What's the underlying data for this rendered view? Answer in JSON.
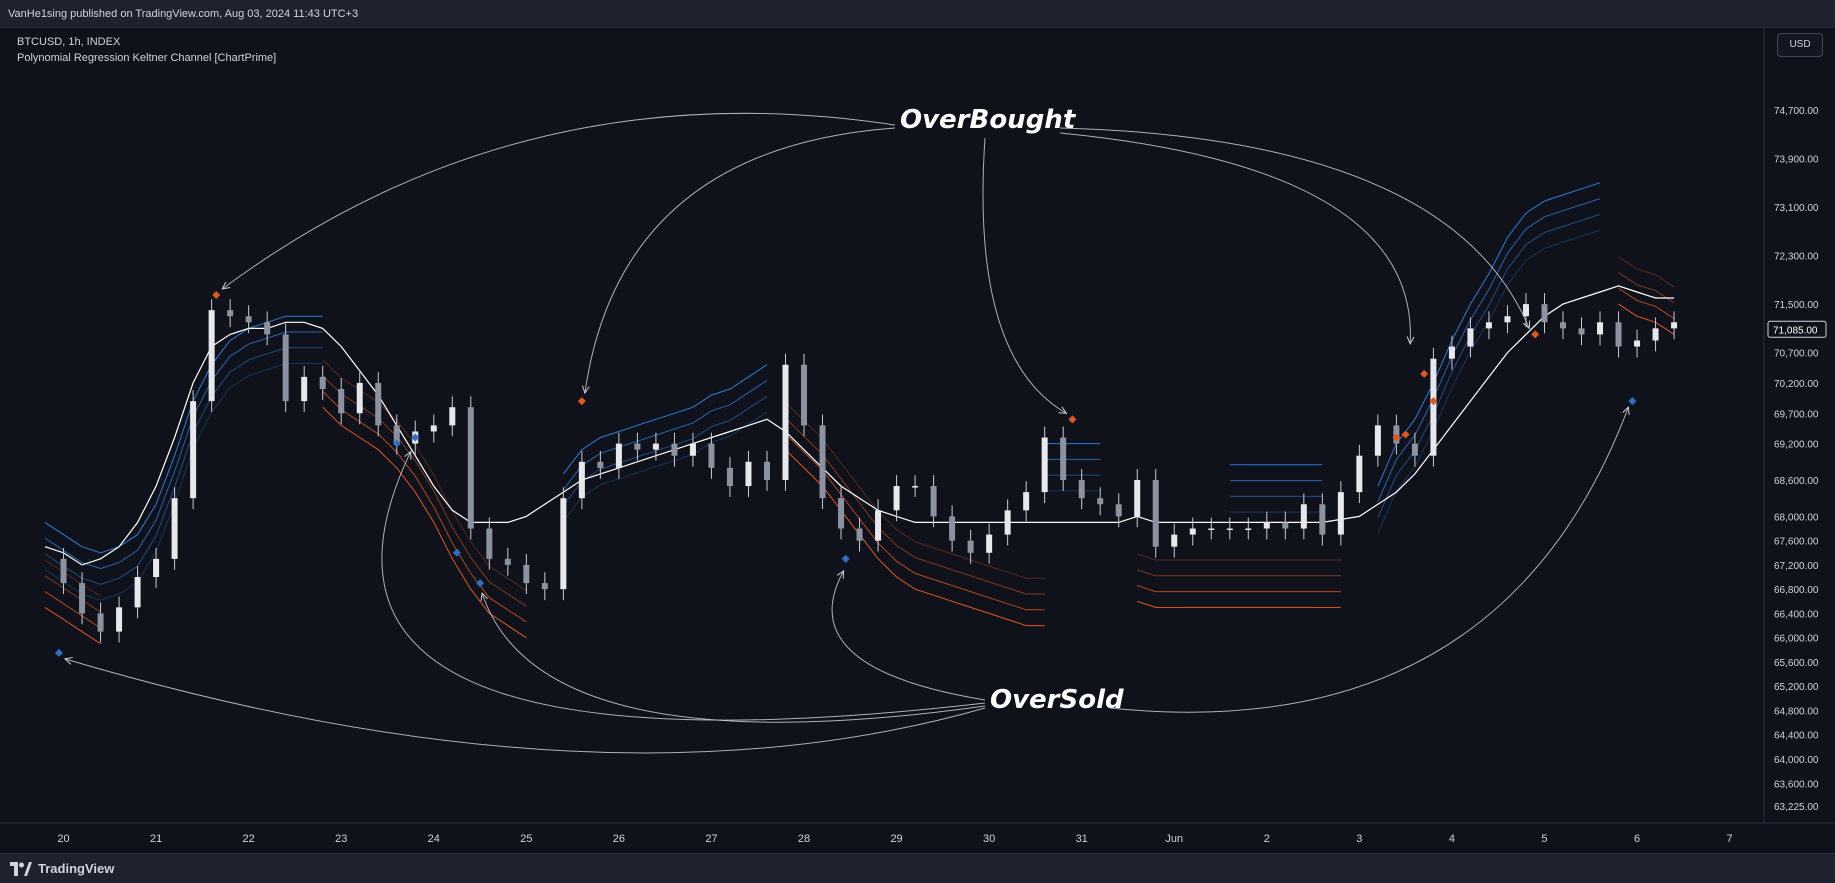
{
  "header": {
    "publish_line": "VanHe1sing published on TradingView.com, Aug 03, 2024 11:43 UTC+3"
  },
  "legend": {
    "symbol_line": "BTCUSD, 1h, INDEX",
    "indicator_line": "Polynomial Regression Keltner Channel [ChartPrime]"
  },
  "currency_button": "USD",
  "footer": {
    "brand": "TradingView"
  },
  "colors": {
    "background": "#0f121b",
    "axis_text": "#d1d4dc",
    "overbought_marker": "#e0571f",
    "oversold_marker": "#2f6fc0",
    "upper_band": "#2e7bd6",
    "lower_band": "#e0571f",
    "basis": "#ffffff",
    "annotation": "#c9ccd4"
  },
  "chart_data": {
    "type": "line",
    "title": "BTCUSD, 1h, INDEX",
    "x_ticks": [
      "20",
      "21",
      "22",
      "23",
      "24",
      "25",
      "26",
      "27",
      "28",
      "29",
      "30",
      "31",
      "Jun",
      "2",
      "3",
      "4",
      "5",
      "6",
      "7"
    ],
    "y_ticks": [
      "74,700.00",
      "73,900.00",
      "73,100.00",
      "72,300.00",
      "71,500.00",
      "71,085.00",
      "70,700.00",
      "70,200.00",
      "69,700.00",
      "69,200.00",
      "68,600.00",
      "68,000.00",
      "67,600.00",
      "67,200.00",
      "66,800.00",
      "66,400.00",
      "66,000.00",
      "65,600.00",
      "65,200.00",
      "64,800.00",
      "64,400.00",
      "64,000.00",
      "63,600.00",
      "63,225.00"
    ],
    "ylim": [
      63000,
      75000
    ],
    "last_price": "71,085.00",
    "x": [
      19.8,
      20.0,
      20.2,
      20.4,
      20.6,
      20.8,
      21.0,
      21.2,
      21.4,
      21.6,
      21.8,
      22.0,
      22.2,
      22.4,
      22.6,
      22.8,
      23.0,
      23.2,
      23.4,
      23.6,
      23.8,
      24.0,
      24.2,
      24.4,
      24.6,
      24.8,
      25.0,
      25.2,
      25.4,
      25.6,
      25.8,
      26.0,
      26.2,
      26.4,
      26.6,
      26.8,
      27.0,
      27.2,
      27.4,
      27.6,
      27.8,
      28.0,
      28.2,
      28.4,
      28.6,
      28.8,
      29.0,
      29.2,
      29.4,
      29.6,
      29.8,
      30.0,
      30.2,
      30.4,
      30.6,
      30.8,
      31.0,
      31.2,
      31.4,
      31.6,
      31.8,
      32.0,
      32.2,
      32.4,
      32.6,
      32.8,
      33.0,
      33.2,
      33.4,
      33.6,
      33.8,
      34.0,
      34.2,
      34.4,
      34.6,
      34.8,
      35.0,
      35.2,
      35.4,
      35.6,
      35.8,
      36.0,
      36.2,
      36.4,
      36.6,
      36.8,
      37.0,
      37.2,
      37.4
    ],
    "series": [
      {
        "values": [
          67300,
          66900,
          66400,
          66100,
          66500,
          67000,
          67300,
          68300,
          69900,
          71400,
          71300,
          71200,
          71000,
          69900,
          70300,
          70100,
          69700,
          70200,
          69500,
          69200,
          69400,
          69500,
          69800,
          67800,
          67300,
          67200,
          66900,
          66800,
          68300,
          68900,
          68800,
          69200,
          69100,
          69200,
          69000,
          69200,
          68800,
          68500,
          68900,
          68600,
          70500,
          69500,
          68300,
          67800,
          67600,
          68100,
          68500,
          68500,
          68000,
          67600,
          67400,
          67700,
          68100,
          68400,
          69300,
          68600,
          68300,
          68200,
          68000,
          68600,
          67500,
          67700,
          67800,
          67800,
          67800,
          67800,
          67900,
          67800,
          68200,
          67700,
          68400,
          69000,
          69500,
          69200,
          69000,
          70600,
          70800,
          71100,
          71200,
          71300,
          71500,
          71200,
          71100,
          71000,
          71200,
          70800,
          70900,
          71100,
          71200
        ],
        "color": "#d1d4dc"
      },
      {
        "values": [
          67900,
          67700,
          67500,
          67400,
          67500,
          67700,
          68200,
          69000,
          69900,
          70500,
          70900,
          71100,
          71200,
          71300,
          71300,
          71300,
          null,
          null,
          null,
          null,
          null,
          null,
          null,
          null,
          null,
          null,
          null,
          null,
          68700,
          69100,
          69300,
          69400,
          69500,
          69600,
          69700,
          69800,
          70000,
          70100,
          70300,
          70500,
          null,
          null,
          null,
          null,
          null,
          null,
          null,
          null,
          null,
          null,
          null,
          null,
          null,
          null,
          69200,
          69200,
          69200,
          69200,
          null,
          null,
          null,
          null,
          null,
          null,
          68850,
          68850,
          68850,
          68850,
          68850,
          68850,
          null,
          null,
          68500,
          69200,
          69600,
          70200,
          70900,
          71500,
          72000,
          72600,
          73000,
          73200,
          73300,
          73400,
          73500,
          null,
          null,
          null,
          null
        ],
        "color": "#2e7bd6"
      },
      {
        "values": [
          66500,
          66300,
          66100,
          65900,
          null,
          null,
          null,
          null,
          null,
          null,
          null,
          null,
          null,
          null,
          null,
          69800,
          69500,
          69300,
          69100,
          68800,
          68400,
          67900,
          67300,
          66800,
          66400,
          66200,
          66000,
          null,
          null,
          null,
          null,
          null,
          null,
          null,
          null,
          null,
          null,
          null,
          null,
          null,
          69100,
          68800,
          68500,
          68100,
          67700,
          67300,
          67000,
          66800,
          66700,
          66600,
          66500,
          66400,
          66300,
          66200,
          66200,
          null,
          null,
          null,
          null,
          66600,
          66500,
          66500,
          66500,
          66500,
          66500,
          66500,
          66500,
          66500,
          66500,
          66500,
          66500,
          null,
          null,
          null,
          null,
          null,
          null,
          null,
          null,
          null,
          null,
          null,
          null,
          null,
          null,
          71500,
          71300,
          71200,
          71000
        ],
        "color": "#e0571f"
      },
      {
        "values": [
          67500,
          67400,
          67200,
          67300,
          67500,
          67900,
          68500,
          69300,
          70200,
          70800,
          71000,
          71100,
          71100,
          71200,
          71200,
          71100,
          70800,
          70400,
          70000,
          69500,
          69000,
          68500,
          68100,
          67900,
          67900,
          67900,
          68000,
          68200,
          68400,
          68600,
          68700,
          68800,
          68900,
          69000,
          69100,
          69200,
          69300,
          69400,
          69500,
          69600,
          69400,
          69100,
          68800,
          68500,
          68300,
          68100,
          68000,
          67900,
          67900,
          67900,
          67900,
          67900,
          67900,
          67900,
          67900,
          67900,
          67900,
          67900,
          67900,
          68000,
          67900,
          67900,
          67900,
          67900,
          67900,
          67900,
          67900,
          67900,
          67900,
          67900,
          67950,
          68000,
          68200,
          68400,
          68700,
          69100,
          69500,
          69900,
          70300,
          70700,
          71000,
          71300,
          71500,
          71600,
          71700,
          71800,
          71700,
          71600,
          71600
        ],
        "color": "#ffffff"
      }
    ],
    "overbought_points": [
      {
        "x": 21.65,
        "y": 71650
      },
      {
        "x": 25.6,
        "y": 69900
      },
      {
        "x": 30.9,
        "y": 69600
      },
      {
        "x": 34.4,
        "y": 69300
      },
      {
        "x": 34.5,
        "y": 69350
      },
      {
        "x": 34.7,
        "y": 70350
      },
      {
        "x": 34.8,
        "y": 69900
      },
      {
        "x": 35.9,
        "y": 71000
      }
    ],
    "oversold_points": [
      {
        "x": 19.95,
        "y": 65750
      },
      {
        "x": 23.6,
        "y": 69200
      },
      {
        "x": 23.8,
        "y": 69300
      },
      {
        "x": 24.25,
        "y": 67400
      },
      {
        "x": 24.5,
        "y": 66900
      },
      {
        "x": 28.45,
        "y": 67300
      },
      {
        "x": 36.95,
        "y": 69900
      }
    ],
    "annotations": [
      "OverBought",
      "OverSold"
    ],
    "grid": false,
    "legend": "top-left"
  }
}
